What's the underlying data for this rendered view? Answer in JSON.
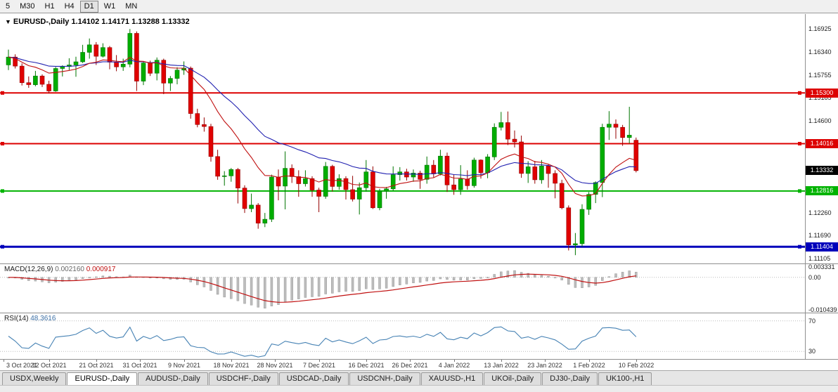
{
  "toolbar": {
    "timeframes": [
      "5",
      "M30",
      "H1",
      "H4",
      "D1",
      "W1",
      "MN"
    ],
    "active": "D1"
  },
  "chart": {
    "symbol": "EURUSD-,Daily",
    "ohlc_text": "1.14102 1.14171 1.13288 1.13332"
  },
  "indicators": {
    "macd": {
      "label": "MACD(12,26,9)",
      "value": "0.002160",
      "signal_value": "0.000917",
      "axis": [
        "0.003331",
        "0.00",
        "-0.010439"
      ]
    },
    "rsi": {
      "label": "RSI(14)",
      "value": "48.3616",
      "levels": [
        "70",
        "30"
      ]
    }
  },
  "price_axis": {
    "labels": [
      "1.16925",
      "1.16340",
      "1.15755",
      "1.15185",
      "1.14600",
      "1.12260",
      "1.11690",
      "1.11105"
    ],
    "boxes": [
      {
        "text": "1.15300",
        "color": "#dd0000"
      },
      {
        "text": "1.14016",
        "color": "#dd0000"
      },
      {
        "text": "1.13332",
        "color": "#000000"
      },
      {
        "text": "1.12816",
        "color": "#00b300"
      },
      {
        "text": "1.11404",
        "color": "#0000bb"
      }
    ]
  },
  "date_axis": [
    {
      "i": -0.7,
      "label": "3 Oct 2021"
    },
    {
      "i": 6,
      "label": "12 Oct 2021"
    },
    {
      "i": 13,
      "label": "21 Oct 2021"
    },
    {
      "i": 19.5,
      "label": "31 Oct 2021"
    },
    {
      "i": 26,
      "label": "9 Nov 2021"
    },
    {
      "i": 33,
      "label": "18 Nov 2021"
    },
    {
      "i": 39.5,
      "label": "28 Nov 2021"
    },
    {
      "i": 46,
      "label": "7 Dec 2021"
    },
    {
      "i": 53,
      "label": "16 Dec 2021"
    },
    {
      "i": 59.5,
      "label": "26 Dec 2021"
    },
    {
      "i": 66,
      "label": "4 Jan 2022"
    },
    {
      "i": 73,
      "label": "13 Jan 2022"
    },
    {
      "i": 79.5,
      "label": "23 Jan 2022"
    },
    {
      "i": 86,
      "label": "1 Feb 2022"
    },
    {
      "i": 93,
      "label": "10 Feb 2022"
    }
  ],
  "tabs": {
    "items": [
      "USDX,Weekly",
      "EURUSD-,Daily",
      "AUDUSD-,Daily",
      "USDCHF-,Daily",
      "USDCAD-,Daily",
      "USDCNH-,Daily",
      "XAUUSD-,H1",
      "UKOil-,Daily",
      "DJ30-,Daily",
      "UK100-,H1"
    ],
    "active": "EURUSD-,Daily"
  },
  "chart_data": {
    "type": "candlestick",
    "title": "EURUSD-,Daily",
    "price_range": [
      1.1098,
      1.173
    ],
    "current_price": 1.13332,
    "hlines": [
      {
        "value": 1.153,
        "color": "#dd0000",
        "width": 2
      },
      {
        "value": 1.14016,
        "color": "#dd0000",
        "width": 2
      },
      {
        "value": 1.12816,
        "color": "#00b300",
        "width": 2
      },
      {
        "value": 1.11404,
        "color": "#0000bb",
        "width": 3
      }
    ],
    "colors": {
      "up": "#00ad00",
      "up_border": "#007400",
      "down": "#e00000",
      "down_border": "#950000",
      "ma_fast": "#c01010",
      "ma_slow": "#2020b0",
      "macd_hist": "#bdbdbd",
      "macd_hist_border": "#9a9a9a",
      "macd_signal": "#c01010",
      "rsi": "#4682b4",
      "level_line": "#bbbbbb"
    },
    "candles": [
      [
        1.1601,
        1.164,
        1.1588,
        1.1621
      ],
      [
        1.1621,
        1.1628,
        1.1592,
        1.1598
      ],
      [
        1.1598,
        1.1605,
        1.1549,
        1.1556
      ],
      [
        1.1556,
        1.1572,
        1.1543,
        1.1551
      ],
      [
        1.1551,
        1.1586,
        1.1547,
        1.1573
      ],
      [
        1.1573,
        1.1577,
        1.1545,
        1.1552
      ],
      [
        1.1552,
        1.1561,
        1.1529,
        1.1535
      ],
      [
        1.1535,
        1.1596,
        1.1533,
        1.1592
      ],
      [
        1.1592,
        1.16,
        1.1572,
        1.1597
      ],
      [
        1.1597,
        1.1618,
        1.1588,
        1.1601
      ],
      [
        1.1601,
        1.1622,
        1.1571,
        1.1609
      ],
      [
        1.1609,
        1.1652,
        1.1606,
        1.1633
      ],
      [
        1.1633,
        1.1668,
        1.1617,
        1.1652
      ],
      [
        1.1652,
        1.1659,
        1.1601,
        1.1623
      ],
      [
        1.1623,
        1.1656,
        1.162,
        1.1645
      ],
      [
        1.1645,
        1.1649,
        1.159,
        1.1608
      ],
      [
        1.1608,
        1.1626,
        1.1585,
        1.1596
      ],
      [
        1.1596,
        1.1617,
        1.1586,
        1.1603
      ],
      [
        1.1603,
        1.1692,
        1.1595,
        1.1681
      ],
      [
        1.1681,
        1.1686,
        1.1535,
        1.156
      ],
      [
        1.156,
        1.1609,
        1.155,
        1.1606
      ],
      [
        1.1606,
        1.1612,
        1.1573,
        1.158
      ],
      [
        1.158,
        1.162,
        1.1562,
        1.1613
      ],
      [
        1.1613,
        1.1617,
        1.1527,
        1.1555
      ],
      [
        1.1555,
        1.1573,
        1.1535,
        1.1567
      ],
      [
        1.1567,
        1.1595,
        1.1552,
        1.1588
      ],
      [
        1.1588,
        1.161,
        1.1576,
        1.1593
      ],
      [
        1.1593,
        1.1597,
        1.1465,
        1.1478
      ],
      [
        1.1478,
        1.149,
        1.1443,
        1.145
      ],
      [
        1.145,
        1.1468,
        1.1432,
        1.1445
      ],
      [
        1.1445,
        1.1452,
        1.1356,
        1.1369
      ],
      [
        1.1369,
        1.1386,
        1.131,
        1.1319
      ],
      [
        1.1319,
        1.1332,
        1.1295,
        1.132
      ],
      [
        1.132,
        1.134,
        1.1305,
        1.1336
      ],
      [
        1.1336,
        1.134,
        1.125,
        1.1289
      ],
      [
        1.1289,
        1.1296,
        1.1226,
        1.1237
      ],
      [
        1.1237,
        1.1275,
        1.1228,
        1.1246
      ],
      [
        1.1246,
        1.1251,
        1.1186,
        1.12
      ],
      [
        1.12,
        1.1226,
        1.119,
        1.121
      ],
      [
        1.121,
        1.1323,
        1.1203,
        1.1317
      ],
      [
        1.1317,
        1.1336,
        1.1258,
        1.1294
      ],
      [
        1.1294,
        1.1382,
        1.1235,
        1.1339
      ],
      [
        1.1339,
        1.1349,
        1.1302,
        1.1318
      ],
      [
        1.1318,
        1.1334,
        1.1267,
        1.13
      ],
      [
        1.13,
        1.1334,
        1.1293,
        1.1313
      ],
      [
        1.1313,
        1.1319,
        1.1267,
        1.1284
      ],
      [
        1.1284,
        1.129,
        1.1228,
        1.1268
      ],
      [
        1.1268,
        1.1355,
        1.1262,
        1.1344
      ],
      [
        1.1344,
        1.1348,
        1.128,
        1.1293
      ],
      [
        1.1293,
        1.1324,
        1.1285,
        1.1313
      ],
      [
        1.1313,
        1.1319,
        1.126,
        1.1285
      ],
      [
        1.1285,
        1.132,
        1.1255,
        1.1261
      ],
      [
        1.1261,
        1.1303,
        1.1222,
        1.129
      ],
      [
        1.129,
        1.136,
        1.128,
        1.133
      ],
      [
        1.133,
        1.1344,
        1.1236,
        1.1239
      ],
      [
        1.1239,
        1.1287,
        1.1233,
        1.1281
      ],
      [
        1.1281,
        1.1292,
        1.1262,
        1.1287
      ],
      [
        1.1287,
        1.1344,
        1.1282,
        1.1323
      ],
      [
        1.1323,
        1.1342,
        1.1308,
        1.133
      ],
      [
        1.133,
        1.1338,
        1.1308,
        1.1317
      ],
      [
        1.1317,
        1.1336,
        1.1305,
        1.1327
      ],
      [
        1.1327,
        1.1333,
        1.1287,
        1.1311
      ],
      [
        1.1311,
        1.1369,
        1.13,
        1.1347
      ],
      [
        1.1347,
        1.136,
        1.1316,
        1.1325
      ],
      [
        1.1325,
        1.1386,
        1.1321,
        1.137
      ],
      [
        1.137,
        1.1379,
        1.1279,
        1.1297
      ],
      [
        1.1297,
        1.1323,
        1.1272,
        1.1285
      ],
      [
        1.1285,
        1.1347,
        1.1272,
        1.1312
      ],
      [
        1.1312,
        1.1334,
        1.1285,
        1.1295
      ],
      [
        1.1295,
        1.1366,
        1.129,
        1.136
      ],
      [
        1.136,
        1.1362,
        1.1313,
        1.1328
      ],
      [
        1.1328,
        1.1375,
        1.1314,
        1.1368
      ],
      [
        1.1368,
        1.1453,
        1.136,
        1.1443
      ],
      [
        1.1443,
        1.1482,
        1.1435,
        1.1455
      ],
      [
        1.1455,
        1.1483,
        1.1398,
        1.1413
      ],
      [
        1.1413,
        1.1435,
        1.1392,
        1.1406
      ],
      [
        1.1406,
        1.1422,
        1.1315,
        1.1326
      ],
      [
        1.1326,
        1.1357,
        1.1302,
        1.1343
      ],
      [
        1.1343,
        1.1358,
        1.13,
        1.131
      ],
      [
        1.131,
        1.136,
        1.13,
        1.1345
      ],
      [
        1.1345,
        1.135,
        1.129,
        1.1326
      ],
      [
        1.1326,
        1.1334,
        1.1263,
        1.1301
      ],
      [
        1.1301,
        1.131,
        1.1235,
        1.1239
      ],
      [
        1.1239,
        1.1245,
        1.1131,
        1.1145
      ],
      [
        1.1145,
        1.1175,
        1.1119,
        1.1148
      ],
      [
        1.1148,
        1.1248,
        1.1141,
        1.1235
      ],
      [
        1.1235,
        1.1279,
        1.1221,
        1.1273
      ],
      [
        1.1273,
        1.1306,
        1.1251,
        1.1303
      ],
      [
        1.1303,
        1.1452,
        1.1266,
        1.1443
      ],
      [
        1.1443,
        1.1484,
        1.1411,
        1.1451
      ],
      [
        1.1451,
        1.1463,
        1.1414,
        1.1443
      ],
      [
        1.1443,
        1.1449,
        1.1396,
        1.1417
      ],
      [
        1.1417,
        1.1495,
        1.1402,
        1.1423
      ],
      [
        1.14102,
        1.14171,
        1.13288,
        1.13332
      ]
    ]
  }
}
